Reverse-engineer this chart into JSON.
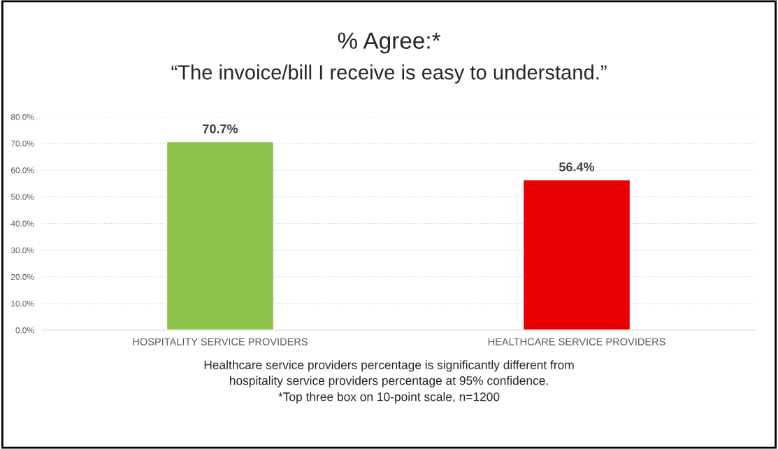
{
  "chart_data": {
    "type": "bar",
    "title": "% Agree:*",
    "subtitle": "“The invoice/bill I receive is easy to understand.”",
    "categories": [
      "HOSPITALITY SERVICE PROVIDERS",
      "HEALTHCARE SERVICE PROVIDERS"
    ],
    "values": [
      70.7,
      56.4
    ],
    "colors": [
      "#8bc14a",
      "#e80000"
    ],
    "value_labels": [
      "70.7%",
      "56.4%"
    ],
    "ylim": [
      0,
      80
    ],
    "yticks": [
      {
        "value": 0,
        "label": "0.0%"
      },
      {
        "value": 10,
        "label": "10.0%"
      },
      {
        "value": 20,
        "label": "20.0%"
      },
      {
        "value": 30,
        "label": "30.0%"
      },
      {
        "value": 40,
        "label": "40.0%"
      },
      {
        "value": 50,
        "label": "50.0%"
      },
      {
        "value": 60,
        "label": "60.0%"
      },
      {
        "value": 70,
        "label": "70.0%"
      },
      {
        "value": 80,
        "label": "80.0%"
      }
    ],
    "grid": "y",
    "legend": false,
    "annotations": [
      "Healthcare service providers percentage is significantly different from",
      "hospitality service providers percentage at 95% confidence.",
      "*Top three box on 10-point scale, n=1200"
    ]
  }
}
